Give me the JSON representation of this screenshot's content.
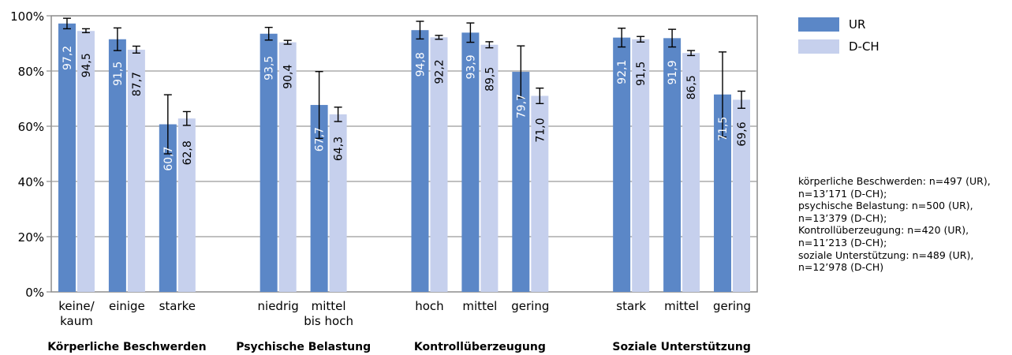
{
  "chart_data": {
    "type": "bar",
    "ylim": [
      0,
      100
    ],
    "y_ticks": [
      "0%",
      "20%",
      "40%",
      "60%",
      "80%",
      "100%"
    ],
    "grid": true,
    "legend_position": "top-right",
    "series": [
      {
        "name": "UR",
        "color": "#5b87c7"
      },
      {
        "name": "D-CH",
        "color": "#c6d0ed"
      }
    ],
    "groups": [
      {
        "label": "Körperliche Beschwerden",
        "categories": [
          {
            "label": [
              "keine/",
              "kaum"
            ],
            "values": [
              97.2,
              94.5
            ],
            "labels": [
              "97,2",
              "94,5"
            ],
            "errors": [
              [
                95.3,
                99.1
              ],
              [
                93.9,
                95.3
              ]
            ]
          },
          {
            "label": [
              "einige"
            ],
            "values": [
              91.5,
              87.7
            ],
            "labels": [
              "91,5",
              "87,7"
            ],
            "errors": [
              [
                87.4,
                95.6
              ],
              [
                86.5,
                89.0
              ]
            ]
          },
          {
            "label": [
              "starke"
            ],
            "values": [
              60.7,
              62.8
            ],
            "labels": [
              "60,7",
              "62,8"
            ],
            "errors": [
              [
                50.0,
                71.4
              ],
              [
                60.3,
                65.3
              ]
            ]
          }
        ]
      },
      {
        "label": "Psychische Belastung",
        "categories": [
          {
            "label": [
              "niedrig"
            ],
            "values": [
              93.5,
              90.4
            ],
            "labels": [
              "93,5",
              "90,4"
            ],
            "errors": [
              [
                91.2,
                95.8
              ],
              [
                89.7,
                91.1
              ]
            ]
          },
          {
            "label": [
              "mittel",
              "bis hoch"
            ],
            "values": [
              67.7,
              64.3
            ],
            "labels": [
              "67,7",
              "64,3"
            ],
            "errors": [
              [
                55.6,
                79.8
              ],
              [
                61.7,
                66.9
              ]
            ]
          }
        ]
      },
      {
        "label": "Kontrollüberzeugung",
        "categories": [
          {
            "label": [
              "hoch"
            ],
            "values": [
              94.8,
              92.2
            ],
            "labels": [
              "94,8",
              "92,2"
            ],
            "errors": [
              [
                91.6,
                98.0
              ],
              [
                91.5,
                92.9
              ]
            ]
          },
          {
            "label": [
              "mittel"
            ],
            "values": [
              93.9,
              89.5
            ],
            "labels": [
              "93,9",
              "89,5"
            ],
            "errors": [
              [
                90.4,
                97.4
              ],
              [
                88.4,
                90.6
              ]
            ]
          },
          {
            "label": [
              "gering"
            ],
            "values": [
              79.7,
              71.0
            ],
            "labels": [
              "79,7",
              "71,0"
            ],
            "errors": [
              [
                70.3,
                89.1
              ],
              [
                68.2,
                73.8
              ]
            ]
          }
        ]
      },
      {
        "label": "Soziale Unterstützung",
        "categories": [
          {
            "label": [
              "stark"
            ],
            "values": [
              92.1,
              91.5
            ],
            "labels": [
              "92,1",
              "91,5"
            ],
            "errors": [
              [
                88.7,
                95.5
              ],
              [
                90.5,
                92.5
              ]
            ]
          },
          {
            "label": [
              "mittel"
            ],
            "values": [
              91.9,
              86.5
            ],
            "labels": [
              "91,9",
              "86,5"
            ],
            "errors": [
              [
                88.7,
                95.1
              ],
              [
                85.6,
                87.4
              ]
            ]
          },
          {
            "label": [
              "gering"
            ],
            "values": [
              71.5,
              69.6
            ],
            "labels": [
              "71,5",
              "69,6"
            ],
            "errors": [
              [
                56.1,
                86.9
              ],
              [
                66.5,
                72.7
              ]
            ]
          }
        ]
      }
    ]
  },
  "note": {
    "lines": [
      "körperliche Beschwerden: n=497 (UR),",
      "n=13’171 (D-CH);",
      "psychische Belastung: n=500 (UR),",
      "n=13’379 (D-CH);",
      "Kontrollüberzeugung: n=420 (UR),",
      "n=11’213 (D-CH);",
      "soziale Unterstützung: n=489 (UR),",
      "n=12’978 (D-CH)"
    ]
  }
}
